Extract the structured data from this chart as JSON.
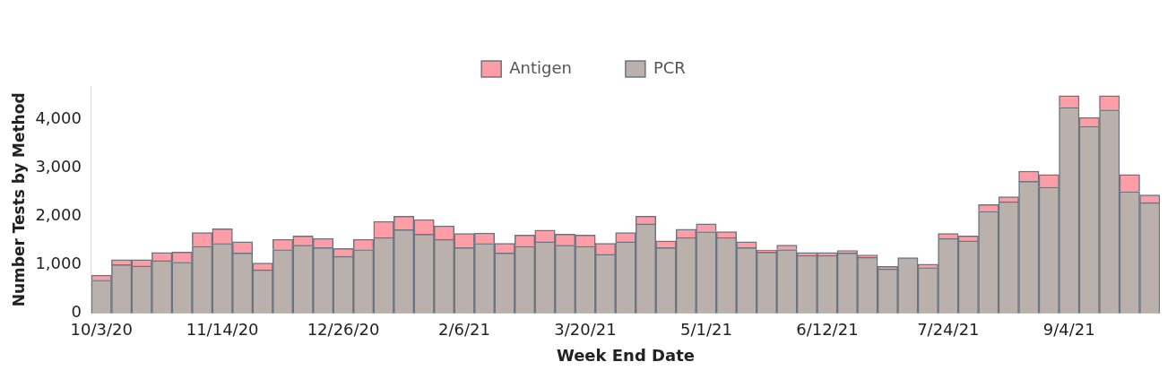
{
  "chart_data": {
    "type": "bar",
    "stacked": true,
    "xlabel": "Week End Date",
    "ylabel": "Number Tests by Method",
    "categories": [
      "10/3/20",
      null,
      null,
      null,
      null,
      null,
      "11/14/20",
      null,
      null,
      null,
      null,
      null,
      "12/26/20",
      null,
      null,
      null,
      null,
      null,
      "2/6/21",
      null,
      null,
      null,
      null,
      null,
      "3/20/21",
      null,
      null,
      null,
      null,
      null,
      "5/1/21",
      null,
      null,
      null,
      null,
      null,
      "6/12/21",
      null,
      null,
      null,
      null,
      null,
      "7/24/21",
      null,
      null,
      null,
      null,
      null,
      "9/4/21",
      null,
      null,
      null,
      null
    ],
    "series": [
      {
        "name": "PCR",
        "color": "#bab0ac",
        "values": [
          690,
          1010,
          980,
          1090,
          1060,
          1390,
          1450,
          1250,
          900,
          1320,
          1410,
          1360,
          1180,
          1320,
          1570,
          1730,
          1640,
          1530,
          1360,
          1450,
          1250,
          1390,
          1480,
          1410,
          1390,
          1220,
          1480,
          1850,
          1360,
          1570,
          1690,
          1570,
          1360,
          1270,
          1320,
          1200,
          1200,
          1250,
          1160,
          920,
          1150,
          950,
          1550,
          1500,
          2110,
          2310,
          2730,
          2610,
          4260,
          3870,
          4210,
          2520,
          2290
        ]
      },
      {
        "name": "Antigen",
        "color": "#ff9da7",
        "values": [
          100,
          100,
          130,
          170,
          210,
          280,
          300,
          230,
          140,
          210,
          190,
          190,
          160,
          210,
          330,
          280,
          300,
          280,
          290,
          210,
          200,
          230,
          240,
          230,
          230,
          230,
          190,
          160,
          140,
          170,
          160,
          120,
          120,
          40,
          90,
          60,
          60,
          50,
          50,
          50,
          null,
          70,
          100,
          100,
          140,
          100,
          210,
          260,
          240,
          180,
          290,
          350,
          160
        ]
      }
    ],
    "ylim": [
      0,
      4700
    ],
    "yticks": [
      0,
      {
        "value": 1000,
        "label": "1,000"
      },
      {
        "value": 2000,
        "label": "2,000"
      },
      {
        "value": 3000,
        "label": "3,000"
      },
      {
        "value": 4000,
        "label": "4,000"
      }
    ],
    "legend": "top"
  }
}
